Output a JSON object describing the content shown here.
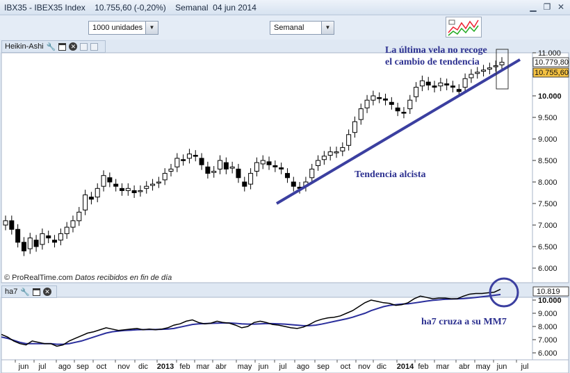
{
  "titlebar": {
    "text": "IBX35 - IBEX35 Index    10.755,60 (-0,20%)    Semanal  04 jun 2014",
    "icon_symbol": "▲▼",
    "buttons": [
      "minimize-icon",
      "restore-icon",
      "close-icon"
    ]
  },
  "toolbar": {
    "units_value": "1000 unidades",
    "period_value": "Semanal"
  },
  "main_panel": {
    "title": "Heikin-Ashi"
  },
  "lower_panel": {
    "title": "ha7"
  },
  "watermark": {
    "brand": "© ProRealTime.com",
    "note": "Datos recibidos en fin de día"
  },
  "colors": {
    "trendline": "#3b3fa0",
    "annotation": "#2d3190",
    "close_badge": "#f5c242",
    "ma_line": "#2a2e9c",
    "ha_line": "#000000"
  },
  "chart_data": [
    {
      "type": "candlestick",
      "y_axis_ticks": [
        "11.000",
        "10.500",
        "10.000",
        "9.500",
        "9.000",
        "8.500",
        "8.000",
        "7.500",
        "7.000",
        "6.500",
        "6.000"
      ],
      "ylim": [
        5800,
        11200
      ],
      "price_labels": {
        "high": "10.779,80",
        "close": "10.755,60"
      },
      "x_axis_labels": [
        "jun",
        "jul",
        "ago",
        "sep",
        "oct",
        "nov",
        "dic",
        "2013",
        "feb",
        "mar",
        "abr",
        "may",
        "jun",
        "jul",
        "ago",
        "sep",
        "oct",
        "nov",
        "dic",
        "2014",
        "feb",
        "mar",
        "abr",
        "may",
        "jun",
        "jul"
      ],
      "annotations": [
        {
          "text": "La última vela no recoge",
          "text2": "el cambio de tendencia"
        },
        {
          "text": "Tendencia alcista"
        }
      ],
      "trendline": {
        "from": {
          "x": "jun 2013",
          "y": 7500
        },
        "to": {
          "x": "jun 2014",
          "y": 10600
        }
      },
      "candles_close": [
        7100,
        6900,
        6600,
        6400,
        6700,
        6500,
        6800,
        6700,
        6600,
        6800,
        6950,
        7100,
        7300,
        7700,
        7600,
        7850,
        8150,
        8000,
        7900,
        7800,
        7850,
        7750,
        7800,
        7900,
        7950,
        8000,
        8200,
        8300,
        8550,
        8500,
        8650,
        8600,
        8400,
        8200,
        8250,
        8500,
        8300,
        8350,
        8100,
        7900,
        8200,
        8450,
        8500,
        8400,
        8350,
        8300,
        8100,
        7900,
        7850,
        8000,
        8300,
        8500,
        8600,
        8700,
        8700,
        8800,
        9100,
        9400,
        9700,
        9900,
        10000,
        9950,
        9900,
        9800,
        9650,
        9600,
        9900,
        10200,
        10350,
        10250,
        10200,
        10300,
        10250,
        10200,
        10100,
        10400,
        10500,
        10550,
        10600,
        10650,
        10700,
        10780
      ],
      "candles_open": [
        7000,
        7100,
        6900,
        6600,
        6450,
        6650,
        6550,
        6750,
        6650,
        6650,
        6800,
        6950,
        7100,
        7350,
        7650,
        7650,
        7900,
        8100,
        7950,
        7850,
        7800,
        7800,
        7780,
        7850,
        7920,
        7980,
        8050,
        8250,
        8350,
        8520,
        8550,
        8620,
        8550,
        8350,
        8220,
        8300,
        8450,
        8320,
        8300,
        8000,
        7950,
        8250,
        8420,
        8470,
        8380,
        8330,
        8200,
        8000,
        7880,
        7900,
        8100,
        8380,
        8520,
        8620,
        8680,
        8720,
        8850,
        9150,
        9450,
        9720,
        9900,
        9960,
        9930,
        9850,
        9720,
        9620,
        9700,
        9980,
        10230,
        10320,
        10230,
        10230,
        10280,
        10230,
        10150,
        10200,
        10420,
        10520,
        10570,
        10620,
        10680,
        10720
      ]
    },
    {
      "type": "line",
      "series": [
        {
          "name": "ha7",
          "label": "10.819"
        },
        {
          "name": "MM7"
        }
      ],
      "y_axis_ticks": [
        "10.000",
        "9.000",
        "8.000",
        "7.000",
        "6.000"
      ],
      "ylim": [
        5800,
        11200
      ],
      "annotation": "ha7 cruza a su MM7",
      "ha7": [
        7400,
        7200,
        6900,
        6700,
        6600,
        6900,
        6800,
        6700,
        6700,
        6500,
        6600,
        6900,
        7100,
        7300,
        7500,
        7600,
        7750,
        7900,
        7800,
        7700,
        7750,
        7800,
        7850,
        7750,
        7800,
        7750,
        7800,
        7900,
        8100,
        8200,
        8400,
        8500,
        8300,
        8200,
        8250,
        8400,
        8300,
        8250,
        8100,
        7900,
        8000,
        8300,
        8400,
        8300,
        8150,
        8100,
        8000,
        7900,
        7850,
        7950,
        8150,
        8400,
        8550,
        8650,
        8700,
        8800,
        9000,
        9200,
        9500,
        9800,
        10000,
        9900,
        9800,
        9750,
        9600,
        9650,
        9800,
        10100,
        10300,
        10200,
        10100,
        10150,
        10150,
        10100,
        10100,
        10300,
        10450,
        10500,
        10500,
        10550,
        10600,
        10819
      ],
      "mm7": [
        7200,
        7100,
        6950,
        6800,
        6700,
        6700,
        6700,
        6700,
        6700,
        6650,
        6650,
        6700,
        6800,
        6900,
        7050,
        7200,
        7350,
        7500,
        7600,
        7650,
        7700,
        7720,
        7750,
        7760,
        7770,
        7770,
        7780,
        7800,
        7850,
        7950,
        8050,
        8150,
        8200,
        8220,
        8240,
        8250,
        8260,
        8260,
        8240,
        8200,
        8180,
        8180,
        8200,
        8220,
        8220,
        8200,
        8180,
        8140,
        8100,
        8060,
        8060,
        8100,
        8180,
        8280,
        8380,
        8480,
        8580,
        8700,
        8850,
        9000,
        9200,
        9350,
        9500,
        9600,
        9650,
        9700,
        9720,
        9780,
        9850,
        9920,
        9980,
        10020,
        10060,
        10080,
        10090,
        10110,
        10150,
        10200,
        10250,
        10300,
        10360,
        10420
      ]
    }
  ]
}
